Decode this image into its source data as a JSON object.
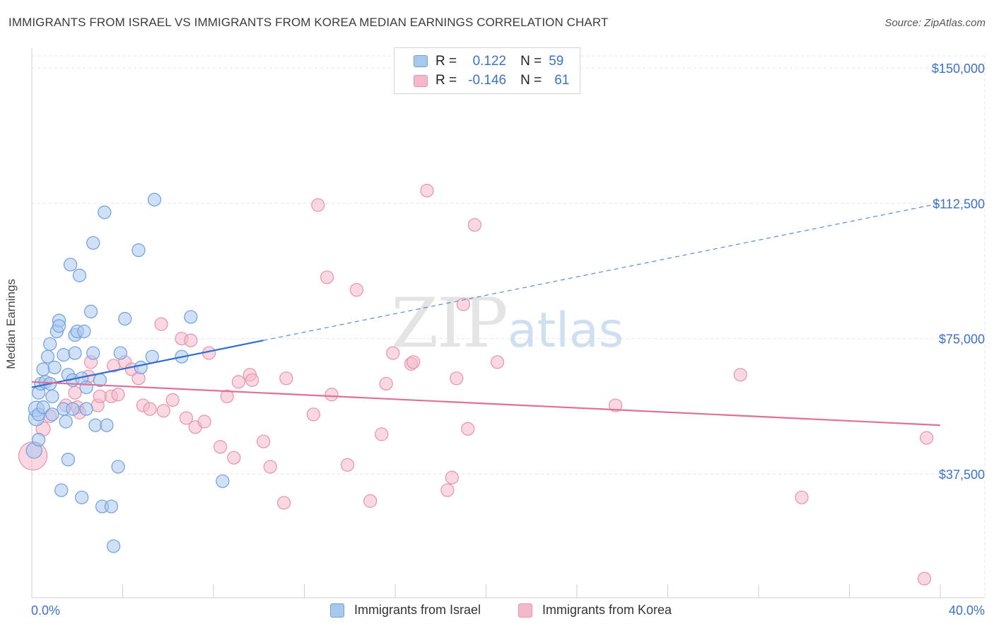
{
  "header": {
    "title": "IMMIGRANTS FROM ISRAEL VS IMMIGRANTS FROM KOREA MEDIAN EARNINGS CORRELATION CHART",
    "source": "Source: ZipAtlas.com"
  },
  "watermark": {
    "zip": "ZIP",
    "atlas": "atlas"
  },
  "legend_top": {
    "rows": [
      {
        "r_label": "R =",
        "r_value": "0.122",
        "n_label": "N =",
        "n_value": "59",
        "color": "#a9c8f0"
      },
      {
        "r_label": "R =",
        "r_value": "-0.146",
        "n_label": "N =",
        "n_value": "61",
        "color": "#f5b8cb"
      }
    ]
  },
  "legend_bottom": {
    "items": [
      {
        "label": "Immigrants from Israel",
        "color": "#a9c8f0"
      },
      {
        "label": "Immigrants from Korea",
        "color": "#f5b8cb"
      }
    ]
  },
  "colors": {
    "israel_fill": "#a9c8f0",
    "israel_stroke": "#6f9fdc",
    "israel_line": "#2f6fcb",
    "korea_fill": "#f5b8cb",
    "korea_stroke": "#e892ad",
    "korea_line": "#e07099",
    "axis_label": "#3c72c8",
    "grid": "#e3e3e3"
  },
  "chart_data": {
    "type": "scatter",
    "title": "IMMIGRANTS FROM ISRAEL VS IMMIGRANTS FROM KOREA MEDIAN EARNINGS CORRELATION CHART",
    "xlabel": "",
    "ylabel": "Median Earnings",
    "xlim": [
      0,
      40
    ],
    "ylim": [
      0,
      155000
    ],
    "x_tick_labels": [
      {
        "value": 0,
        "label": "0.0%"
      },
      {
        "value": 40,
        "label": "40.0%"
      }
    ],
    "y_ticks": [
      {
        "value": 37500,
        "label": "$37,500"
      },
      {
        "value": 75000,
        "label": "$75,000"
      },
      {
        "value": 112500,
        "label": "$112,500"
      },
      {
        "value": 150000,
        "label": "$150,000"
      }
    ],
    "series": [
      {
        "name": "Immigrants from Israel",
        "R": 0.122,
        "N": 59,
        "trend": {
          "x0": 0,
          "y0": 61500,
          "x1": 10.2,
          "y1": 74500,
          "x_end": 40,
          "y_end": 112500
        },
        "points": [
          [
            0.1,
            44000,
            11
          ],
          [
            0.2,
            53000,
            11
          ],
          [
            0.2,
            55500,
            11
          ],
          [
            0.3,
            54000,
            9
          ],
          [
            0.3,
            47000,
            9
          ],
          [
            0.3,
            60000,
            9
          ],
          [
            0.4,
            62500,
            9
          ],
          [
            0.5,
            56000,
            9
          ],
          [
            0.5,
            66500,
            9
          ],
          [
            0.6,
            63000,
            9
          ],
          [
            0.7,
            70000,
            9
          ],
          [
            0.8,
            73500,
            9
          ],
          [
            0.8,
            62500,
            9
          ],
          [
            0.9,
            54000,
            9
          ],
          [
            0.9,
            59000,
            9
          ],
          [
            1.0,
            67000,
            9
          ],
          [
            1.1,
            77000,
            9
          ],
          [
            1.2,
            80000,
            9
          ],
          [
            1.2,
            78500,
            9
          ],
          [
            1.3,
            33000,
            9
          ],
          [
            1.4,
            55500,
            9
          ],
          [
            1.4,
            70500,
            9
          ],
          [
            1.5,
            52000,
            9
          ],
          [
            1.6,
            65000,
            9
          ],
          [
            1.6,
            41500,
            9
          ],
          [
            1.7,
            95500,
            9
          ],
          [
            1.8,
            63500,
            9
          ],
          [
            1.8,
            55500,
            9
          ],
          [
            1.9,
            71000,
            9
          ],
          [
            1.9,
            76000,
            9
          ],
          [
            2.0,
            77000,
            9
          ],
          [
            2.1,
            92500,
            9
          ],
          [
            2.2,
            31000,
            9
          ],
          [
            2.2,
            64000,
            9
          ],
          [
            2.3,
            77000,
            9
          ],
          [
            2.4,
            55500,
            9
          ],
          [
            2.4,
            61500,
            9
          ],
          [
            2.6,
            82500,
            9
          ],
          [
            2.7,
            71000,
            9
          ],
          [
            2.7,
            101500,
            9
          ],
          [
            2.8,
            51000,
            9
          ],
          [
            3.0,
            63500,
            9
          ],
          [
            3.1,
            28500,
            9
          ],
          [
            3.2,
            110000,
            9
          ],
          [
            3.3,
            51000,
            9
          ],
          [
            3.5,
            28500,
            9
          ],
          [
            3.6,
            17500,
            9
          ],
          [
            3.8,
            39500,
            9
          ],
          [
            3.9,
            71000,
            9
          ],
          [
            4.1,
            80500,
            9
          ],
          [
            4.7,
            99500,
            9
          ],
          [
            4.8,
            67000,
            9
          ],
          [
            5.3,
            70000,
            9
          ],
          [
            5.4,
            113500,
            9
          ],
          [
            6.6,
            70000,
            9
          ],
          [
            7.0,
            81000,
            9
          ],
          [
            8.4,
            35500,
            9
          ]
        ]
      },
      {
        "name": "Immigrants from Korea",
        "R": -0.146,
        "N": 61,
        "trend": {
          "x0": 0,
          "y0": 63000,
          "x1": 40,
          "y1": 51000
        },
        "points": [
          [
            0.05,
            42500,
            20
          ],
          [
            0.5,
            50000,
            10
          ],
          [
            0.8,
            53500,
            9
          ],
          [
            1.5,
            56500,
            9
          ],
          [
            1.9,
            60000,
            9
          ],
          [
            2.0,
            56000,
            9
          ],
          [
            2.1,
            54500,
            9
          ],
          [
            2.5,
            64500,
            9
          ],
          [
            2.6,
            68500,
            9
          ],
          [
            2.9,
            56500,
            9
          ],
          [
            3.0,
            59000,
            9
          ],
          [
            3.5,
            59000,
            9
          ],
          [
            3.6,
            67500,
            9
          ],
          [
            3.8,
            59500,
            9
          ],
          [
            4.1,
            68500,
            9
          ],
          [
            4.4,
            66500,
            9
          ],
          [
            4.7,
            64000,
            9
          ],
          [
            4.9,
            56500,
            9
          ],
          [
            5.2,
            55500,
            9
          ],
          [
            5.7,
            79000,
            9
          ],
          [
            5.8,
            55000,
            9
          ],
          [
            6.2,
            58000,
            9
          ],
          [
            6.6,
            75000,
            9
          ],
          [
            6.8,
            53000,
            9
          ],
          [
            7.0,
            74500,
            9
          ],
          [
            7.2,
            50500,
            9
          ],
          [
            7.6,
            52000,
            9
          ],
          [
            7.8,
            71000,
            9
          ],
          [
            8.3,
            45000,
            9
          ],
          [
            8.6,
            59000,
            9
          ],
          [
            8.9,
            42000,
            9
          ],
          [
            9.1,
            63000,
            9
          ],
          [
            9.6,
            65000,
            9
          ],
          [
            9.7,
            63500,
            9
          ],
          [
            10.2,
            46500,
            9
          ],
          [
            10.5,
            39500,
            9
          ],
          [
            11.1,
            29500,
            9
          ],
          [
            11.2,
            64000,
            9
          ],
          [
            12.4,
            54000,
            9
          ],
          [
            12.6,
            112000,
            9
          ],
          [
            13.0,
            92000,
            9
          ],
          [
            13.2,
            59500,
            9
          ],
          [
            13.9,
            40000,
            9
          ],
          [
            14.3,
            88500,
            9
          ],
          [
            14.9,
            30000,
            9
          ],
          [
            15.4,
            48500,
            9
          ],
          [
            15.6,
            62500,
            9
          ],
          [
            15.9,
            71000,
            9
          ],
          [
            16.7,
            68000,
            9
          ],
          [
            16.8,
            68500,
            9
          ],
          [
            17.4,
            116000,
            9
          ],
          [
            18.3,
            33000,
            9
          ],
          [
            18.5,
            36500,
            9
          ],
          [
            18.7,
            64000,
            9
          ],
          [
            19.0,
            84500,
            9
          ],
          [
            19.2,
            50000,
            9
          ],
          [
            19.5,
            106500,
            9
          ],
          [
            20.5,
            68500,
            9
          ],
          [
            25.7,
            56500,
            9
          ],
          [
            31.2,
            65000,
            9
          ],
          [
            33.9,
            31000,
            9
          ],
          [
            39.4,
            47500,
            9
          ],
          [
            39.3,
            8500,
            9
          ]
        ]
      }
    ]
  }
}
